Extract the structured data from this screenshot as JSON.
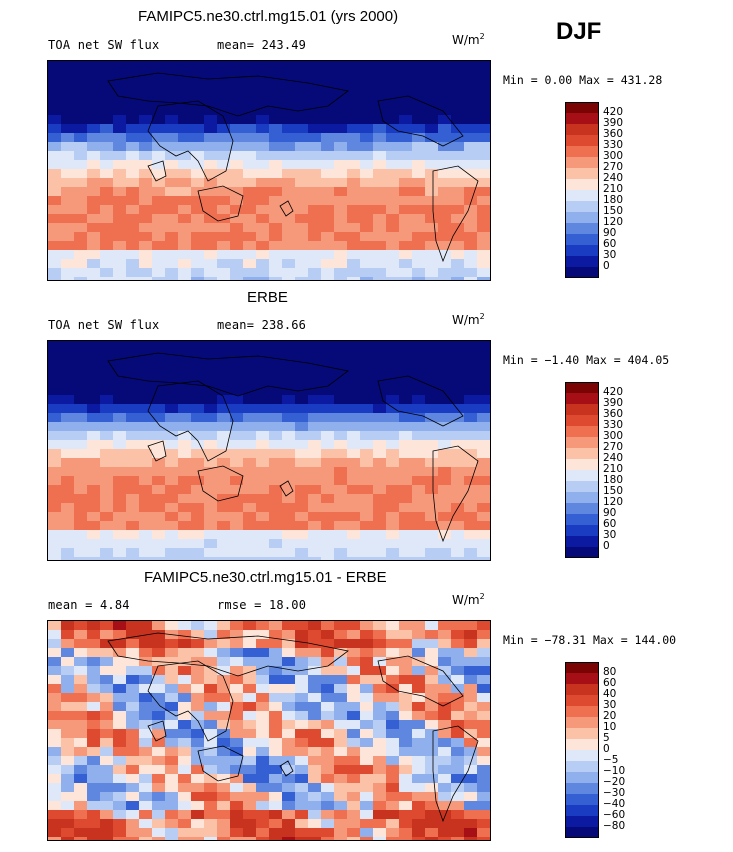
{
  "season": "DJF",
  "panels": [
    {
      "title": "FAMIPC5.ne30.ctrl.mg15.01 (yrs 2000)",
      "left_label": "TOA net SW flux",
      "stat_label": "mean=",
      "stat_value": "243.49",
      "units": "W/m",
      "units_sup": "2",
      "minmax": "Min =   0.00 Max = 431.28",
      "levels": [
        "420",
        "390",
        "360",
        "330",
        "300",
        "270",
        "240",
        "210",
        "180",
        "150",
        "120",
        "90",
        "60",
        "30",
        "0"
      ]
    },
    {
      "title": "ERBE",
      "left_label": "TOA net SW flux",
      "stat_label": "mean=",
      "stat_value": "238.66",
      "units": "W/m",
      "units_sup": "2",
      "minmax": "Min =  −1.40 Max = 404.05",
      "levels": [
        "420",
        "390",
        "360",
        "330",
        "300",
        "270",
        "240",
        "210",
        "180",
        "150",
        "120",
        "90",
        "60",
        "30",
        "0"
      ]
    },
    {
      "title": "FAMIPC5.ne30.ctrl.mg15.01 - ERBE",
      "left_label": "mean =",
      "left_value": "4.84",
      "stat_label": "rmse =",
      "stat_value": "18.00",
      "units": "W/m",
      "units_sup": "2",
      "minmax": "Min = −78.31 Max = 144.00",
      "levels": [
        "80",
        "60",
        "40",
        "30",
        "20",
        "10",
        "5",
        "0",
        "−5",
        "−10",
        "−20",
        "−30",
        "−40",
        "−60",
        "−80"
      ]
    }
  ],
  "colors": {
    "abs_scale": [
      "#7a0403",
      "#a50f15",
      "#c8331f",
      "#de4a2f",
      "#ef7050",
      "#f6997b",
      "#fbc2a8",
      "#fde6d9",
      "#dfe8f8",
      "#b7cdf3",
      "#8fb0ec",
      "#5f87e0",
      "#3560d4",
      "#1a3cc2",
      "#0b1aa0",
      "#050a78"
    ],
    "diff_scale": [
      "#7a0403",
      "#a50f15",
      "#c8331f",
      "#de4a2f",
      "#ef7050",
      "#f6997b",
      "#fbc2a8",
      "#fde6d9",
      "#dfe8f8",
      "#b7cdf3",
      "#8fb0ec",
      "#5f87e0",
      "#3560d4",
      "#1a3cc2",
      "#0b1aa0",
      "#050a78"
    ]
  }
}
